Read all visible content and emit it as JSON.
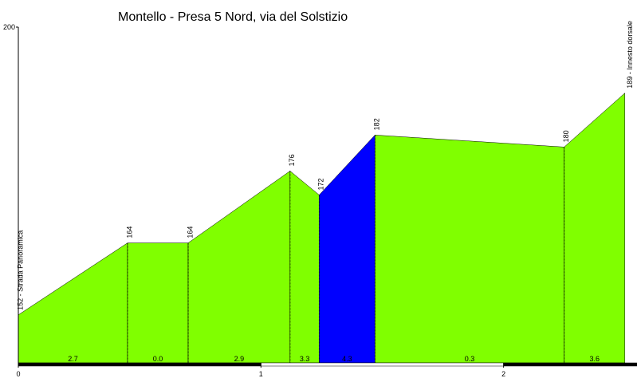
{
  "chart_data": {
    "type": "elevation-profile",
    "title": "Montello - Presa 5 Nord, via del Solstizio",
    "x": [
      0,
      0.45,
      0.7,
      1.12,
      1.24,
      1.47,
      2.25,
      2.5
    ],
    "values": [
      152,
      164,
      164,
      176,
      172,
      182,
      180,
      189
    ],
    "value_labels": [
      "152 - Strada Panoramica",
      "164",
      "164",
      "176",
      "172",
      "182",
      "180",
      "189 - Innesto dorsale"
    ],
    "gradients": [
      2.7,
      0,
      2.9,
      3.3,
      4.3,
      0.3,
      3.6
    ],
    "gradient_labels": [
      "2.7",
      "0.0",
      "2.9",
      "3.3",
      "4.3",
      "0.3",
      "3.6"
    ],
    "segment_colors": [
      "#80ff00",
      "#80ff00",
      "#80ff00",
      "#80ff00",
      "#0000ff",
      "#80ff00",
      "#80ff00"
    ],
    "xlim": [
      0,
      2.55
    ],
    "xticks": [
      0,
      1,
      2
    ],
    "ylim": [
      144,
      200
    ],
    "yticks": [
      200
    ]
  }
}
